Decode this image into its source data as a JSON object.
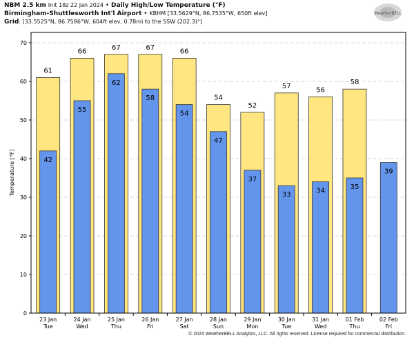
{
  "header": {
    "line1_bold": "NBM 2.5 km",
    "line1_init": "Init 18z 22 Jan 2024",
    "line1_sep": " • ",
    "line1_title": "Daily High/Low Temperature (°F)",
    "line2_bold": "Birmingham-Shuttlesworth Int'l Airport",
    "line2_rest": "KBHM [33.5629°N, 86.7535°W, 650ft elev]",
    "line3_bold": "Grid",
    "line3_rest": ": [33.5525°N, 86.7586°W, 604ft elev, 0.78mi to the SSW (202.3)°]"
  },
  "logo": "WeatherBELL",
  "footer": "© 2024 WeatherBELL Analytics, LLC. All rights reserved. License required for commercial distribution.",
  "colors": {
    "high": "#ffe680",
    "low": "#6495ed",
    "grid": "#cccccc"
  },
  "chart_data": {
    "type": "bar",
    "title": "Daily High/Low Temperature (°F)",
    "ylabel": "Temperature [°F]",
    "xlabel": "",
    "ylim": [
      0,
      75
    ],
    "yticks": [
      0,
      10,
      20,
      30,
      40,
      50,
      60,
      70
    ],
    "grid": true,
    "categories": [
      [
        "23 Jan",
        "Tue"
      ],
      [
        "24 Jan",
        "Wed"
      ],
      [
        "25 Jan",
        "Thu"
      ],
      [
        "26 Jan",
        "Fri"
      ],
      [
        "27 Jan",
        "Sat"
      ],
      [
        "28 Jan",
        "Sun"
      ],
      [
        "29 Jan",
        "Mon"
      ],
      [
        "30 Jan",
        "Tue"
      ],
      [
        "31 Jan",
        "Wed"
      ],
      [
        "01 Feb",
        "Thu"
      ],
      [
        "02 Feb",
        "Fri"
      ]
    ],
    "series": [
      {
        "name": "High",
        "values": [
          61,
          66,
          67,
          67,
          66,
          54,
          52,
          57,
          56,
          58,
          null
        ]
      },
      {
        "name": "Low",
        "values": [
          42,
          55,
          62,
          58,
          54,
          47,
          37,
          33,
          34,
          35,
          39
        ]
      }
    ]
  }
}
